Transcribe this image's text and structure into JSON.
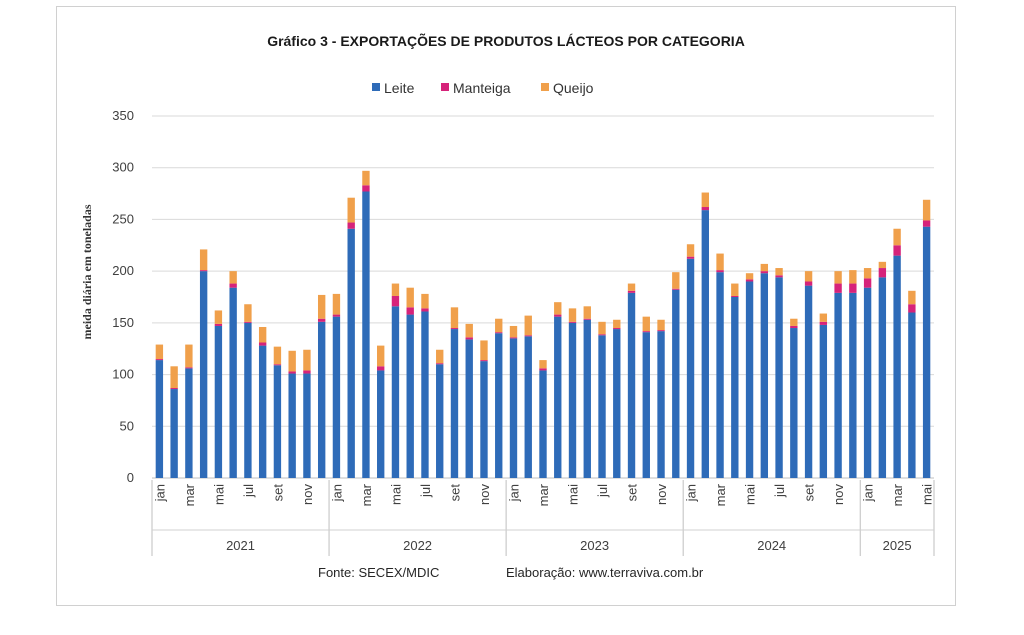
{
  "chart_data": {
    "type": "bar",
    "stacked": true,
    "title": "Gráfico  3 - EXPORTAÇÕES  DE PRODUTOS  LÁCTEOS POR CATEGORIA",
    "ylabel": "meida diária em toneladas",
    "xlabel": "",
    "ylim": [
      0,
      350
    ],
    "yticks": [
      0,
      50,
      100,
      150,
      200,
      250,
      300,
      350
    ],
    "grid": true,
    "legend_position": "top",
    "month_labels": [
      "jan",
      "mar",
      "mai",
      "jul",
      "set",
      "nov"
    ],
    "month_label_indices": [
      0,
      2,
      4,
      6,
      8,
      10
    ],
    "years": [
      {
        "label": "2021",
        "start": 0,
        "end": 11
      },
      {
        "label": "2022",
        "start": 12,
        "end": 23
      },
      {
        "label": "2023",
        "start": 24,
        "end": 35
      },
      {
        "label": "2024",
        "start": 36,
        "end": 47
      },
      {
        "label": "2025",
        "start": 48,
        "end": 52
      }
    ],
    "series": [
      {
        "name": "Leite",
        "color": "#2e6bb8",
        "values": [
          114,
          86,
          106,
          200,
          147,
          184,
          150,
          128,
          109,
          101,
          101,
          151,
          156,
          241,
          277,
          104,
          166,
          158,
          161,
          110,
          144,
          134,
          113,
          140,
          135,
          137,
          104,
          156,
          150,
          153,
          138,
          144,
          179,
          141,
          142,
          182,
          212,
          259,
          199,
          175,
          190,
          198,
          194,
          145,
          186,
          148,
          179,
          179,
          184,
          194,
          215,
          160,
          243
        ]
      },
      {
        "name": "Manteiga",
        "color": "#d6237a",
        "values": [
          1,
          1,
          1,
          1,
          2,
          4,
          1,
          3,
          1,
          2,
          3,
          3,
          2,
          6,
          6,
          4,
          10,
          7,
          3,
          1,
          1,
          2,
          1,
          1,
          1,
          1,
          2,
          2,
          1,
          1,
          1,
          1,
          2,
          1,
          1,
          1,
          2,
          3,
          2,
          1,
          2,
          2,
          2,
          2,
          4,
          3,
          9,
          9,
          9,
          9,
          10,
          8,
          6
        ]
      },
      {
        "name": "Queijo",
        "color": "#f0a04b",
        "values": [
          14,
          21,
          22,
          20,
          13,
          12,
          17,
          15,
          17,
          20,
          20,
          23,
          20,
          24,
          14,
          20,
          12,
          19,
          14,
          13,
          20,
          13,
          19,
          13,
          11,
          19,
          8,
          12,
          13,
          12,
          12,
          8,
          7,
          14,
          10,
          16,
          12,
          14,
          16,
          12,
          6,
          7,
          7,
          7,
          10,
          8,
          12,
          13,
          10,
          6,
          16,
          13,
          20
        ]
      }
    ]
  },
  "footer": {
    "source": "Fonte: SECEX/MDIC",
    "credit": "Elaboração: www.terraviva.com.br"
  }
}
